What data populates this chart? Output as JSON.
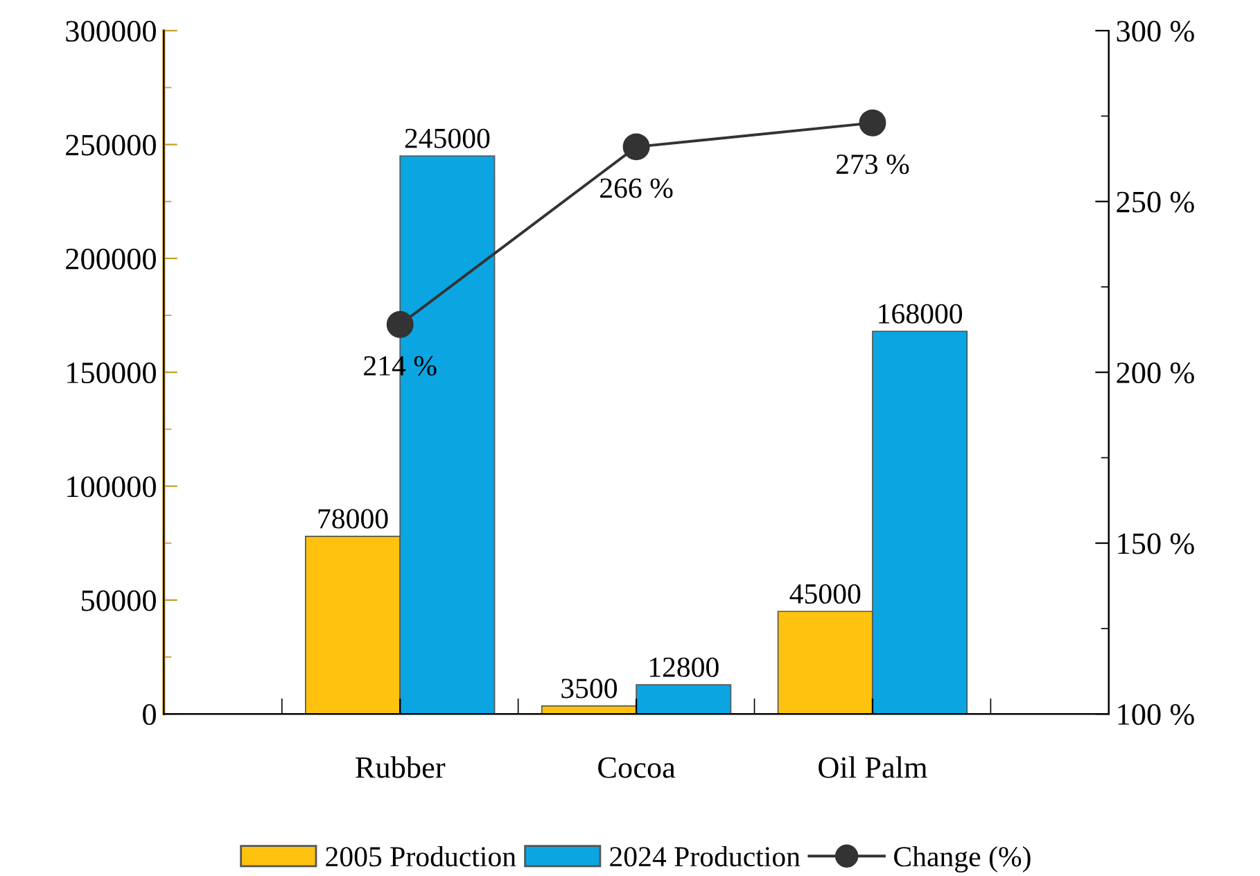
{
  "chart_data": {
    "type": "bar",
    "categories": [
      "Rubber",
      "Cocoa",
      "Oil Palm"
    ],
    "series": [
      {
        "name": "2005 Production",
        "color": "#ffc20e",
        "values": [
          78000,
          3500,
          45000
        ]
      },
      {
        "name": "2024 Production",
        "color": "#0ba5e2",
        "values": [
          245000,
          12800,
          168000
        ]
      },
      {
        "name": "Change (%)",
        "type": "line",
        "axis": "y2",
        "color": "#333333",
        "marker": "circle",
        "values": [
          214,
          266,
          273
        ],
        "value_labels": [
          "214 %",
          "266 %",
          "273 %"
        ]
      }
    ],
    "data_labels": true,
    "ylim": [
      0,
      300000
    ],
    "yticks": [
      0,
      50000,
      100000,
      150000,
      200000,
      250000,
      300000
    ],
    "y2lim": [
      100,
      300
    ],
    "y2ticks": [
      {
        "value": 100,
        "label": "100 %"
      },
      {
        "value": 150,
        "label": "150 %"
      },
      {
        "value": 200,
        "label": "200 %"
      },
      {
        "value": 250,
        "label": "250 %"
      },
      {
        "value": 300,
        "label": "300 %"
      }
    ],
    "legend": "bottom",
    "grid": false
  }
}
